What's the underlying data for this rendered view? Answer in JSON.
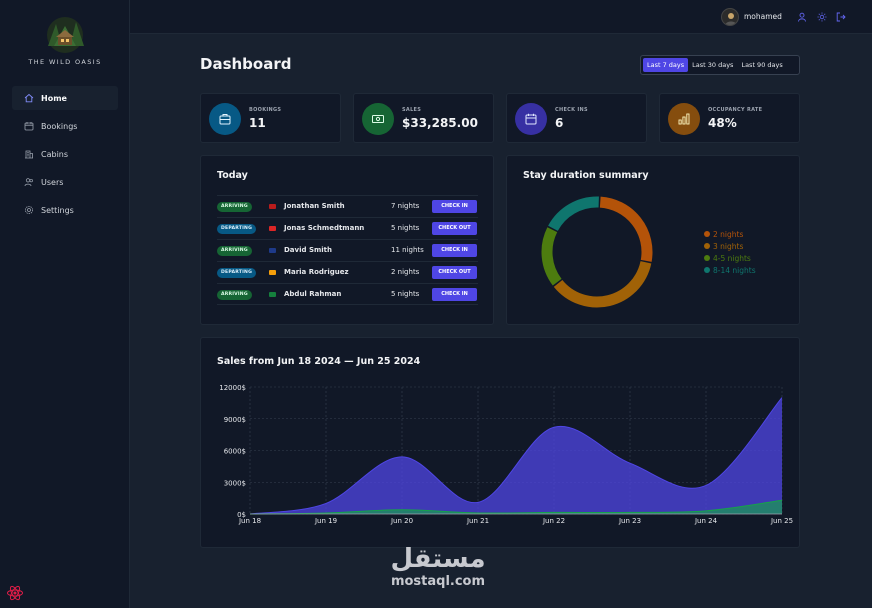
{
  "brand": {
    "name": "THE WILD OASIS"
  },
  "nav": [
    {
      "label": "Home",
      "icon": "home-icon",
      "active": true
    },
    {
      "label": "Bookings",
      "icon": "calendar-icon",
      "active": false
    },
    {
      "label": "Cabins",
      "icon": "building-icon",
      "active": false
    },
    {
      "label": "Users",
      "icon": "users-icon",
      "active": false
    },
    {
      "label": "Settings",
      "icon": "cog-icon",
      "active": false
    }
  ],
  "header": {
    "user_name": "mohamed"
  },
  "page": {
    "title": "Dashboard",
    "filters": [
      {
        "label": "Last 7 days",
        "active": true
      },
      {
        "label": "Last 30 days",
        "active": false
      },
      {
        "label": "Last 90 days",
        "active": false
      }
    ]
  },
  "stats": [
    {
      "label": "BOOKINGS",
      "value": "11",
      "color": "#075985",
      "icon": "briefcase-icon"
    },
    {
      "label": "SALES",
      "value": "$33,285.00",
      "color": "#166534",
      "icon": "banknote-icon"
    },
    {
      "label": "CHECK INS",
      "value": "6",
      "color": "#3730a3",
      "icon": "calendar-check-icon"
    },
    {
      "label": "OCCUPANCY RATE",
      "value": "48%",
      "color": "#854d0e",
      "icon": "bar-chart-icon"
    }
  ],
  "today": {
    "title": "Today",
    "rows": [
      {
        "status": "ARRIVING",
        "type": "arriving",
        "name": "Jonathan Smith",
        "nights": "7 nights",
        "action": "CHECK IN",
        "flag": "#b91c1c"
      },
      {
        "status": "DEPARTING",
        "type": "departing",
        "name": "Jonas Schmedtmann",
        "nights": "5 nights",
        "action": "CHECK OUT",
        "flag": "#dc2626"
      },
      {
        "status": "ARRIVING",
        "type": "arriving",
        "name": "David Smith",
        "nights": "11 nights",
        "action": "CHECK IN",
        "flag": "#1e3a8a"
      },
      {
        "status": "DEPARTING",
        "type": "departing",
        "name": "Maria Rodriguez",
        "nights": "2 nights",
        "action": "CHECK OUT",
        "flag": "#f59e0b"
      },
      {
        "status": "ARRIVING",
        "type": "arriving",
        "name": "Abdul Rahman",
        "nights": "5 nights",
        "action": "CHECK IN",
        "flag": "#15803d"
      }
    ]
  },
  "duration": {
    "title": "Stay duration summary",
    "chart_data": {
      "type": "pie",
      "labels": [
        "2 nights",
        "3 nights",
        "4-5 nights",
        "8-14 nights"
      ],
      "values": [
        3,
        4,
        2,
        2
      ],
      "colors": [
        "#b45309",
        "#a16207",
        "#4d7c0f",
        "#0f766e"
      ]
    }
  },
  "sales": {
    "title": "Sales from Jun 18 2024 — Jun 25 2024",
    "chart_data": {
      "type": "area",
      "categories": [
        "Jun 18",
        "Jun 19",
        "Jun 20",
        "Jun 21",
        "Jun 22",
        "Jun 23",
        "Jun 24",
        "Jun 25"
      ],
      "series": [
        {
          "values": [
            0,
            1000,
            5400,
            1100,
            8200,
            4800,
            2700,
            11000
          ],
          "color": "#4f46e5"
        },
        {
          "values": [
            0,
            100,
            400,
            100,
            150,
            150,
            300,
            1300
          ],
          "color": "#16a34a"
        }
      ],
      "yticks": [
        "0$",
        "3000$",
        "6000$",
        "9000$",
        "12000$"
      ],
      "ylim": [
        0,
        12000
      ]
    }
  },
  "watermark": {
    "arabic": "مستقل",
    "latin": "mostaql.com"
  }
}
